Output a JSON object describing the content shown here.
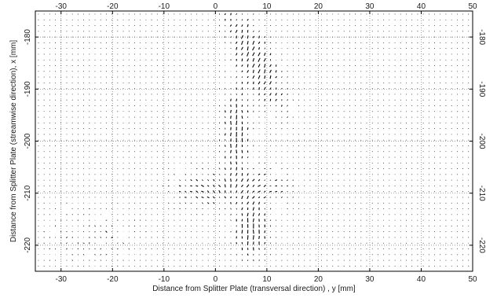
{
  "chart_data": {
    "type": "quiver",
    "title": "",
    "xlabel": "Distance from Splitter Plate (transversal direction) , y [mm]",
    "ylabel": "Distance from Splitter Plate (streamwise direction), x [mm]",
    "xlim": [
      -35,
      50
    ],
    "ylim": [
      -225,
      -175
    ],
    "y_axis_direction": "decreasing-downward",
    "xticks": [
      -30,
      -20,
      -10,
      0,
      10,
      20,
      30,
      40,
      50
    ],
    "yticks": [
      -180,
      -190,
      -200,
      -210,
      -220
    ],
    "x_tick_labels": [
      "-30",
      "-20",
      "-10",
      "0",
      "10",
      "20",
      "30",
      "40",
      "50"
    ],
    "y_tick_labels": [
      "-180",
      "-190",
      "-200",
      "-210",
      "-220"
    ],
    "ticks_mirrored_on_top_and_right": true,
    "grid": "dotted",
    "arrow_color": "#000000",
    "vector_grid_spacing_mm": [
      1.1,
      1.1
    ]
  }
}
